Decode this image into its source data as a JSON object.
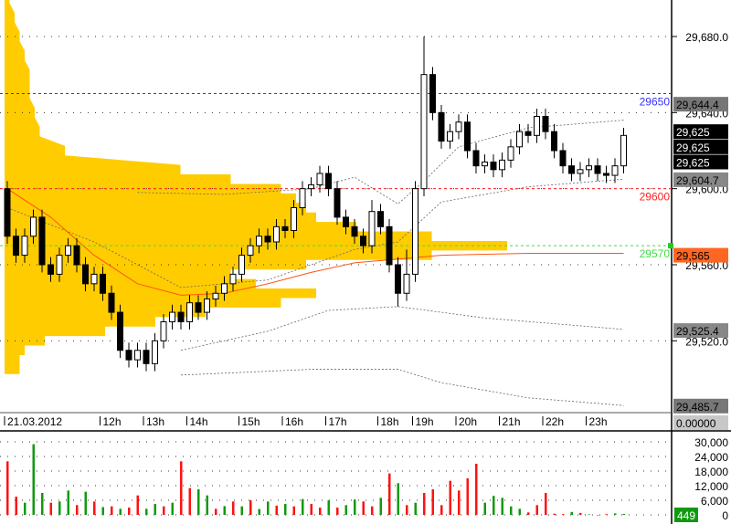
{
  "chart_data": {
    "type": "candlestick",
    "price_axis": {
      "ticks": [
        "29,680.0",
        "29,640.0",
        "29,600.0",
        "29,560.0",
        "29,520.0"
      ],
      "tick_values": [
        29680,
        29640,
        29600,
        29560,
        29520
      ],
      "ylim": [
        29478,
        29700
      ]
    },
    "time_axis": {
      "labels": [
        "21.03.2012",
        "12h",
        "13h",
        "14h",
        "15h",
        "16h",
        "17h",
        "18h",
        "19h",
        "20h",
        "21h",
        "22h",
        "23h"
      ],
      "label_candle_index": [
        0,
        11,
        16,
        21,
        27,
        32,
        37,
        43,
        47,
        52,
        57,
        62,
        67
      ]
    },
    "candles_ohlc": [
      [
        29600,
        29604,
        29571,
        29575
      ],
      [
        29575,
        29579,
        29561,
        29565
      ],
      [
        29565,
        29579,
        29561,
        29575
      ],
      [
        29575,
        29589,
        29571,
        29585
      ],
      [
        29585,
        29589,
        29556,
        29560
      ],
      [
        29560,
        29564,
        29551,
        29555
      ],
      [
        29555,
        29569,
        29551,
        29565
      ],
      [
        29565,
        29574,
        29561,
        29570
      ],
      [
        29570,
        29574,
        29556,
        29560
      ],
      [
        29560,
        29564,
        29546,
        29550
      ],
      [
        29550,
        29559,
        29546,
        29555
      ],
      [
        29555,
        29559,
        29541,
        29545
      ],
      [
        29545,
        29549,
        29531,
        29535
      ],
      [
        29535,
        29539,
        29511,
        29515
      ],
      [
        29515,
        29519,
        29506,
        29510
      ],
      [
        29510,
        29519,
        29506,
        29515
      ],
      [
        29515,
        29519,
        29504,
        29508
      ],
      [
        29508,
        29524,
        29504,
        29520
      ],
      [
        29520,
        29534,
        29516,
        29530
      ],
      [
        29530,
        29539,
        29526,
        29535
      ],
      [
        29535,
        29539,
        29526,
        29530
      ],
      [
        29530,
        29544,
        29526,
        29540
      ],
      [
        29540,
        29544,
        29531,
        29535
      ],
      [
        29535,
        29546,
        29531,
        29542
      ],
      [
        29542,
        29549,
        29538,
        29545
      ],
      [
        29545,
        29554,
        29541,
        29550
      ],
      [
        29550,
        29559,
        29546,
        29555
      ],
      [
        29555,
        29569,
        29551,
        29565
      ],
      [
        29565,
        29574,
        29561,
        29570
      ],
      [
        29570,
        29579,
        29566,
        29575
      ],
      [
        29575,
        29579,
        29568,
        29572
      ],
      [
        29572,
        29584,
        29568,
        29580
      ],
      [
        29580,
        29584,
        29574,
        29578
      ],
      [
        29578,
        29594,
        29574,
        29590
      ],
      [
        29590,
        29604,
        29586,
        29600
      ],
      [
        29600,
        29606,
        29596,
        29602
      ],
      [
        29602,
        29612,
        29598,
        29608
      ],
      [
        29608,
        29612,
        29596,
        29600
      ],
      [
        29600,
        29604,
        29581,
        29585
      ],
      [
        29585,
        29589,
        29576,
        29580
      ],
      [
        29580,
        29584,
        29571,
        29575
      ],
      [
        29575,
        29579,
        29566,
        29570
      ],
      [
        29570,
        29594,
        29566,
        29588
      ],
      [
        29588,
        29592,
        29576,
        29580
      ],
      [
        29580,
        29584,
        29556,
        29560
      ],
      [
        29560,
        29564,
        29538,
        29545
      ],
      [
        29545,
        29568,
        29541,
        29555
      ],
      [
        29555,
        29604,
        29551,
        29600
      ],
      [
        29600,
        29680,
        29596,
        29660
      ],
      [
        29660,
        29664,
        29636,
        29640
      ],
      [
        29640,
        29644,
        29621,
        29625
      ],
      [
        29625,
        29634,
        29621,
        29630
      ],
      [
        29630,
        29639,
        29626,
        29635
      ],
      [
        29635,
        29639,
        29616,
        29620
      ],
      [
        29620,
        29624,
        29608,
        29612
      ],
      [
        29612,
        29618,
        29608,
        29614
      ],
      [
        29614,
        29618,
        29606,
        29610
      ],
      [
        29610,
        29619,
        29606,
        29615
      ],
      [
        29615,
        29626,
        29611,
        29622
      ],
      [
        29622,
        29634,
        29618,
        29630
      ],
      [
        29630,
        29634,
        29624,
        29628
      ],
      [
        29628,
        29642,
        29624,
        29638
      ],
      [
        29638,
        29642,
        29626,
        29630
      ],
      [
        29630,
        29634,
        29616,
        29620
      ],
      [
        29620,
        29624,
        29608,
        29612
      ],
      [
        29612,
        29616,
        29604,
        29608
      ],
      [
        29608,
        29614,
        29604,
        29610
      ],
      [
        29610,
        29616,
        29606,
        29612
      ],
      [
        29612,
        29616,
        29604,
        29608
      ],
      [
        29608,
        29612,
        29603,
        29607
      ],
      [
        29607,
        29616,
        29603,
        29612
      ],
      [
        29612,
        29632,
        29608,
        29628
      ]
    ],
    "vwap": [
      [
        0,
        29600
      ],
      [
        5,
        29585
      ],
      [
        10,
        29565
      ],
      [
        15,
        29550
      ],
      [
        20,
        29544
      ],
      [
        25,
        29545
      ],
      [
        30,
        29550
      ],
      [
        35,
        29556
      ],
      [
        40,
        29561
      ],
      [
        45,
        29563
      ],
      [
        50,
        29565
      ],
      [
        60,
        29566
      ],
      [
        71,
        29566
      ]
    ],
    "bands": [
      [
        [
          15,
          29598
        ],
        [
          25,
          29597
        ],
        [
          35,
          29600
        ],
        [
          40,
          29606
        ],
        [
          45,
          29592
        ],
        [
          48,
          29604
        ],
        [
          52,
          29622
        ],
        [
          60,
          29632
        ],
        [
          71,
          29636
        ]
      ],
      [
        [
          0,
          29590
        ],
        [
          10,
          29572
        ],
        [
          20,
          29548
        ],
        [
          30,
          29552
        ],
        [
          40,
          29568
        ],
        [
          45,
          29572
        ],
        [
          50,
          29593
        ],
        [
          60,
          29601
        ],
        [
          71,
          29605
        ]
      ],
      [
        [
          20,
          29515
        ],
        [
          30,
          29525
        ],
        [
          37,
          29536
        ],
        [
          45,
          29538
        ],
        [
          55,
          29532
        ],
        [
          71,
          29526
        ]
      ],
      [
        [
          20,
          29502
        ],
        [
          35,
          29505
        ],
        [
          45,
          29505
        ],
        [
          50,
          29498
        ],
        [
          60,
          29490
        ],
        [
          71,
          29486
        ]
      ]
    ],
    "volume_profile": {
      "prices": [
        29700,
        29690,
        29680,
        29670,
        29660,
        29650,
        29640,
        29630,
        29620,
        29610,
        29605,
        29600,
        29595,
        29590,
        29585,
        29580,
        29575,
        29570,
        29565,
        29560,
        29555,
        29550,
        29545,
        29540,
        29535,
        29530,
        29525,
        29520,
        29515,
        29510,
        29505
      ],
      "relative_volume": [
        0.01,
        0.02,
        0.03,
        0.04,
        0.05,
        0.05,
        0.06,
        0.07,
        0.12,
        0.35,
        0.45,
        0.55,
        0.58,
        0.6,
        0.62,
        0.7,
        0.85,
        1.0,
        0.85,
        0.6,
        0.45,
        0.5,
        0.62,
        0.55,
        0.4,
        0.3,
        0.2,
        0.08,
        0.04,
        0.03,
        0.03
      ],
      "color": "#FFCC00"
    },
    "levels": [
      {
        "label": "29650",
        "price": 29650,
        "color": "#3333FF"
      },
      {
        "label": "29600",
        "price": 29600,
        "color": "#FF2222"
      },
      {
        "label": "29570",
        "price": 29570,
        "color": "#44DD44"
      }
    ],
    "price_tags": [
      {
        "label": "29,644.4",
        "price": 29644.4,
        "bg": "#777777",
        "fg": "#000000"
      },
      {
        "label": "29,625",
        "price": 29630,
        "bg": "#000000",
        "fg": "#ffffff"
      },
      {
        "label": "29,625",
        "price": 29622,
        "bg": "#000000",
        "fg": "#ffffff"
      },
      {
        "label": "29,625",
        "price": 29614,
        "bg": "#000000",
        "fg": "#ffffff"
      },
      {
        "label": "29,604.7",
        "price": 29604.7,
        "bg": "#888888",
        "fg": "#000000"
      },
      {
        "label": "29,565",
        "price": 29565,
        "bg": "#FF6622",
        "fg": "#000000"
      },
      {
        "label": "29,525.4",
        "price": 29525.4,
        "bg": "#888888",
        "fg": "#000000"
      },
      {
        "label": "29,485.7",
        "price": 29485.7,
        "bg": "#777777",
        "fg": "#000000"
      }
    ],
    "indicator_value": "0.00000",
    "volume": {
      "ticks": [
        "30,000",
        "24,000",
        "18,000",
        "12,000",
        "6,000",
        "0"
      ],
      "tick_values": [
        30000,
        24000,
        18000,
        12000,
        6000,
        0
      ],
      "ylim": [
        0,
        30000
      ],
      "values": [
        22000,
        7500,
        5000,
        29000,
        9000,
        5000,
        5500,
        10000,
        4000,
        9500,
        5500,
        3200,
        3500,
        2500,
        3000,
        8000,
        2500,
        4500,
        3500,
        5000,
        22000,
        11000,
        10500,
        8000,
        2500,
        3600,
        5500,
        3500,
        6000,
        2400,
        5500,
        3800,
        4500,
        3500,
        6500,
        4500,
        3000,
        6000,
        3000,
        4000,
        6300,
        5500,
        3500,
        7000,
        17000,
        13000,
        4000,
        5000,
        9000,
        10500,
        4000,
        14000,
        10000,
        15000,
        21000,
        5000,
        7800,
        7000,
        3500,
        2500,
        1000,
        4000,
        9000,
        500,
        300,
        1200,
        800,
        200,
        0,
        300,
        600,
        400
      ],
      "colors": [
        "r",
        "r",
        "g",
        "g",
        "g",
        "r",
        "g",
        "g",
        "r",
        "g",
        "r",
        "g",
        "r",
        "g",
        "r",
        "r",
        "g",
        "g",
        "r",
        "g",
        "r",
        "r",
        "g",
        "g",
        "r",
        "g",
        "r",
        "g",
        "r",
        "g",
        "g",
        "r",
        "g",
        "r",
        "g",
        "r",
        "r",
        "g",
        "r",
        "g",
        "g",
        "r",
        "r",
        "g",
        "r",
        "g",
        "r",
        "g",
        "r",
        "r",
        "r",
        "r",
        "r",
        "r",
        "r",
        "g",
        "g",
        "g",
        "g",
        "g",
        "r",
        "r",
        "r",
        "r",
        "r",
        "g",
        "r",
        "g",
        "r",
        "r",
        "g",
        "g"
      ],
      "current": "449"
    }
  }
}
